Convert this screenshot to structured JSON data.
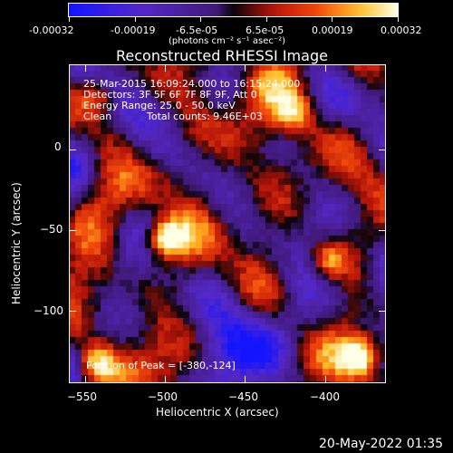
{
  "colorbar": {
    "tick_labels": [
      "-0.00032",
      "-0.00019",
      "-6.5e-05",
      "6.5e-05",
      "0.00019",
      "0.00032"
    ],
    "unit_label": "(photons cm⁻² s⁻¹ asec⁻²)",
    "range": [
      -0.00032,
      0.00032
    ]
  },
  "title": "Reconstructed RHESSI Image",
  "annotations": {
    "time_range": "25-Mar-2015 16:09:24.000 to 16:15:24.000",
    "detectors": "Detectors: 3F 5F 6F 7F 8F 9F, Att 0",
    "energy_range": "Energy Range: 25.0 - 50.0 keV",
    "method": "Clean",
    "total_counts": "Total counts: 9.46E+03",
    "peak_position": "Position of Peak = [-380,-124]"
  },
  "timestamp": "20-May-2022 01:35",
  "chart_data": {
    "type": "heatmap",
    "title": "Reconstructed RHESSI Image",
    "xlabel": "Heliocentric X (arcsec)",
    "ylabel": "Heliocentric Y (arcsec)",
    "xlim": [
      -560,
      -362
    ],
    "ylim": [
      -145,
      53
    ],
    "x_ticks": [
      -550,
      -500,
      -450,
      -400
    ],
    "x_tick_labels": [
      "−550",
      "−500",
      "−450",
      "−400"
    ],
    "y_ticks": [
      0,
      -50,
      -100
    ],
    "y_tick_labels": [
      "0",
      "−50",
      "−100"
    ],
    "colormap_range": [
      -0.00032,
      0.00032
    ],
    "peak": [
      -380,
      -124
    ],
    "bright_sources": [
      {
        "x": -502,
        "y": -52,
        "level": 1.0
      },
      {
        "x": -380,
        "y": -124,
        "level": 1.0
      },
      {
        "x": -545,
        "y": -128,
        "level": 0.7
      },
      {
        "x": -545,
        "y": 35,
        "level": 0.5
      },
      {
        "x": -400,
        "y": -65,
        "level": 0.6
      },
      {
        "x": -420,
        "y": 25,
        "level": 0.5
      }
    ]
  }
}
